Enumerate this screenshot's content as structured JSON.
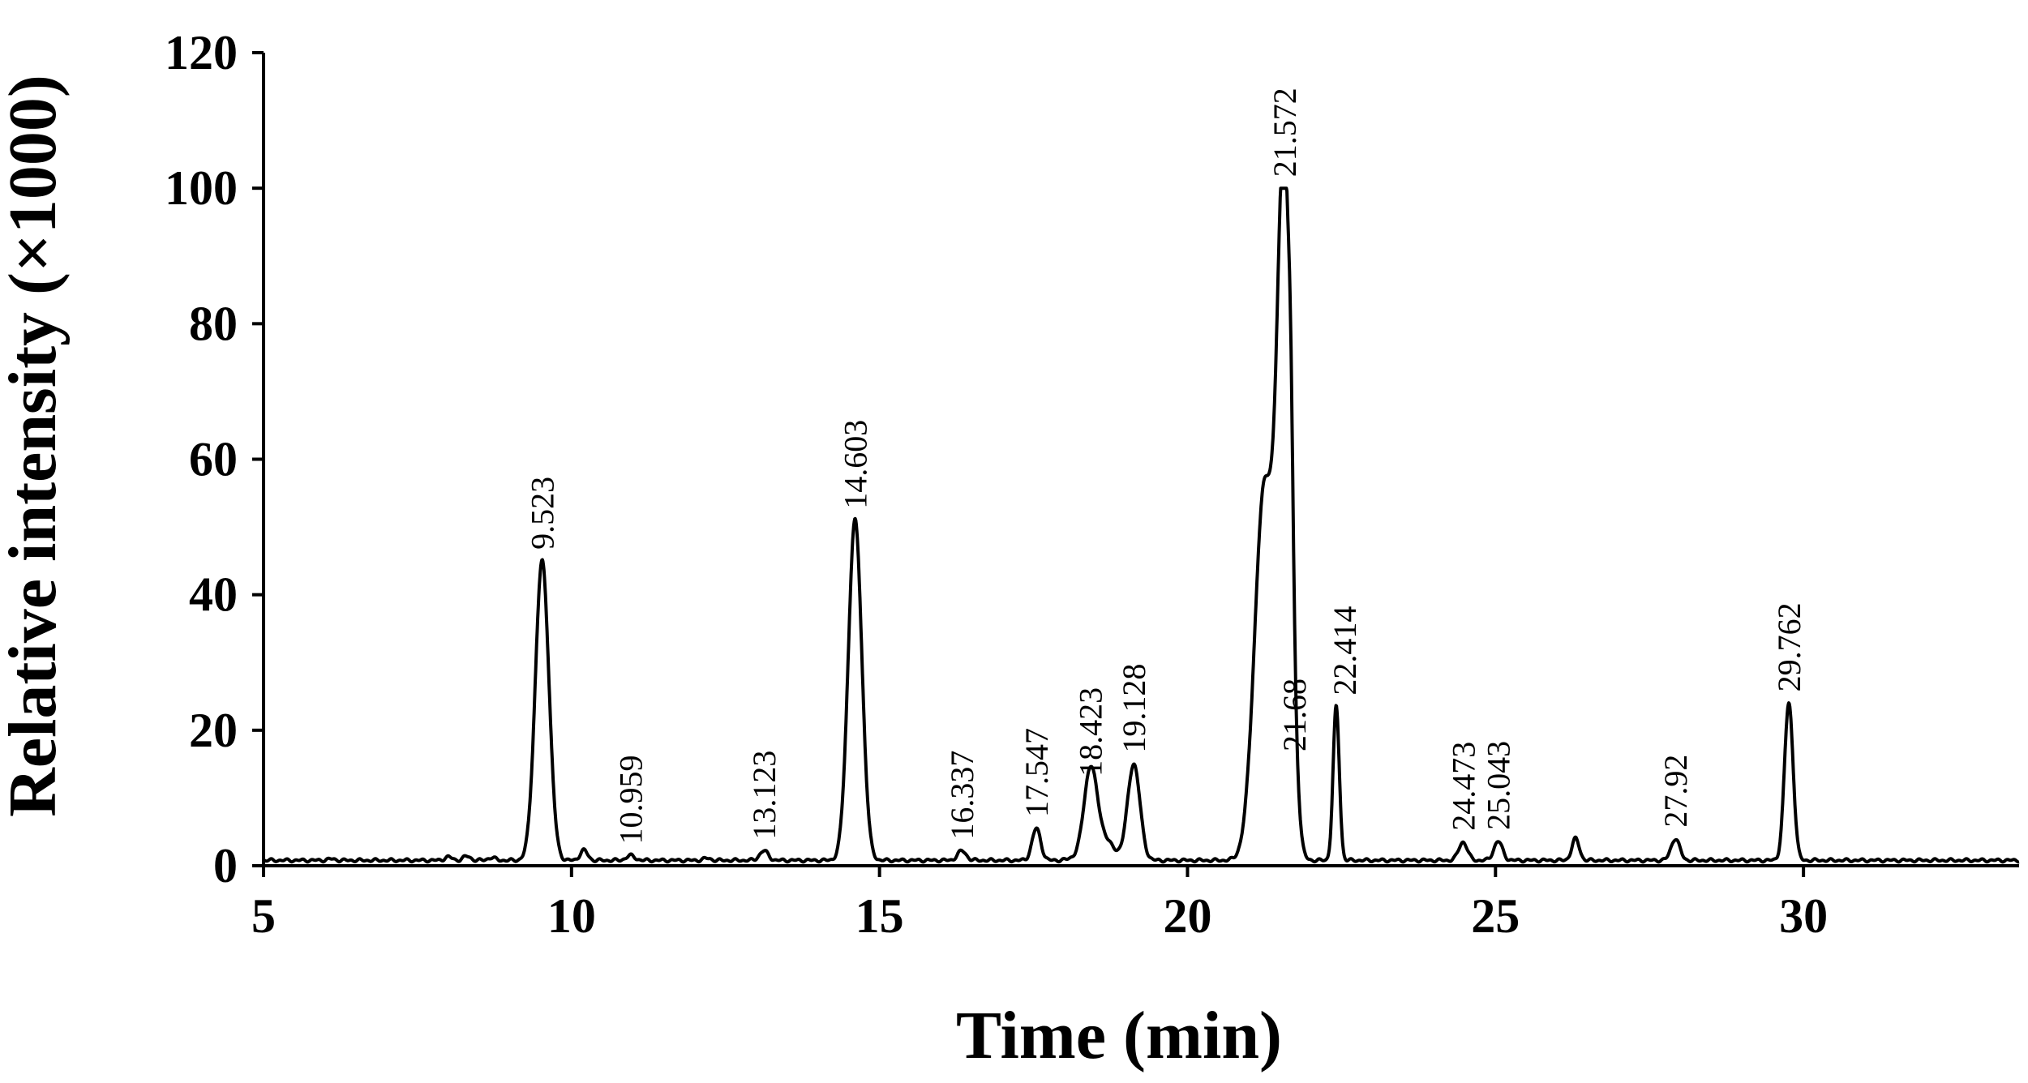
{
  "chart_data": {
    "type": "line",
    "xlabel": "Time (min)",
    "ylabel": "Relative intensity (×1000)",
    "xlim": [
      5,
      33.5
    ],
    "ylim": [
      0,
      120
    ],
    "xticks": [
      "5",
      "10",
      "15",
      "20",
      "25",
      "30"
    ],
    "yticks": [
      "0",
      "20",
      "40",
      "60",
      "80",
      "100",
      "120"
    ],
    "grid": false,
    "baseline": 0.8,
    "peaks": [
      {
        "x": 9.523,
        "y": 45,
        "label": "9.523"
      },
      {
        "x": 10.959,
        "y": 1.5,
        "label": "10.959"
      },
      {
        "x": 13.123,
        "y": 2.2,
        "label": "13.123"
      },
      {
        "x": 14.603,
        "y": 51,
        "label": "14.603"
      },
      {
        "x": 16.337,
        "y": 2.2,
        "label": "16.337"
      },
      {
        "x": 17.547,
        "y": 5.5,
        "label": "17.547"
      },
      {
        "x": 18.423,
        "y": 11.5,
        "label": "18.423"
      },
      {
        "x": 19.128,
        "y": 15,
        "label": "19.128"
      },
      {
        "x": 21.572,
        "y": 100,
        "label": "21.572"
      },
      {
        "x": 21.68,
        "y": 14,
        "label": "21.68"
      },
      {
        "x": 22.414,
        "y": 23.5,
        "label": "22.414"
      },
      {
        "x": 24.473,
        "y": 3.5,
        "label": "24.473"
      },
      {
        "x": 25.043,
        "y": 3.6,
        "label": "25.043"
      },
      {
        "x": 27.92,
        "y": 4,
        "label": "27.92"
      },
      {
        "x": 29.762,
        "y": 24,
        "label": "29.762"
      }
    ],
    "minor_peaks": [
      {
        "x": 6.1,
        "y": 1.0
      },
      {
        "x": 8.0,
        "y": 1.3
      },
      {
        "x": 8.3,
        "y": 1.4
      },
      {
        "x": 8.7,
        "y": 1.2
      },
      {
        "x": 10.2,
        "y": 2.3
      },
      {
        "x": 12.2,
        "y": 1.1
      },
      {
        "x": 26.3,
        "y": 4.0
      }
    ]
  }
}
